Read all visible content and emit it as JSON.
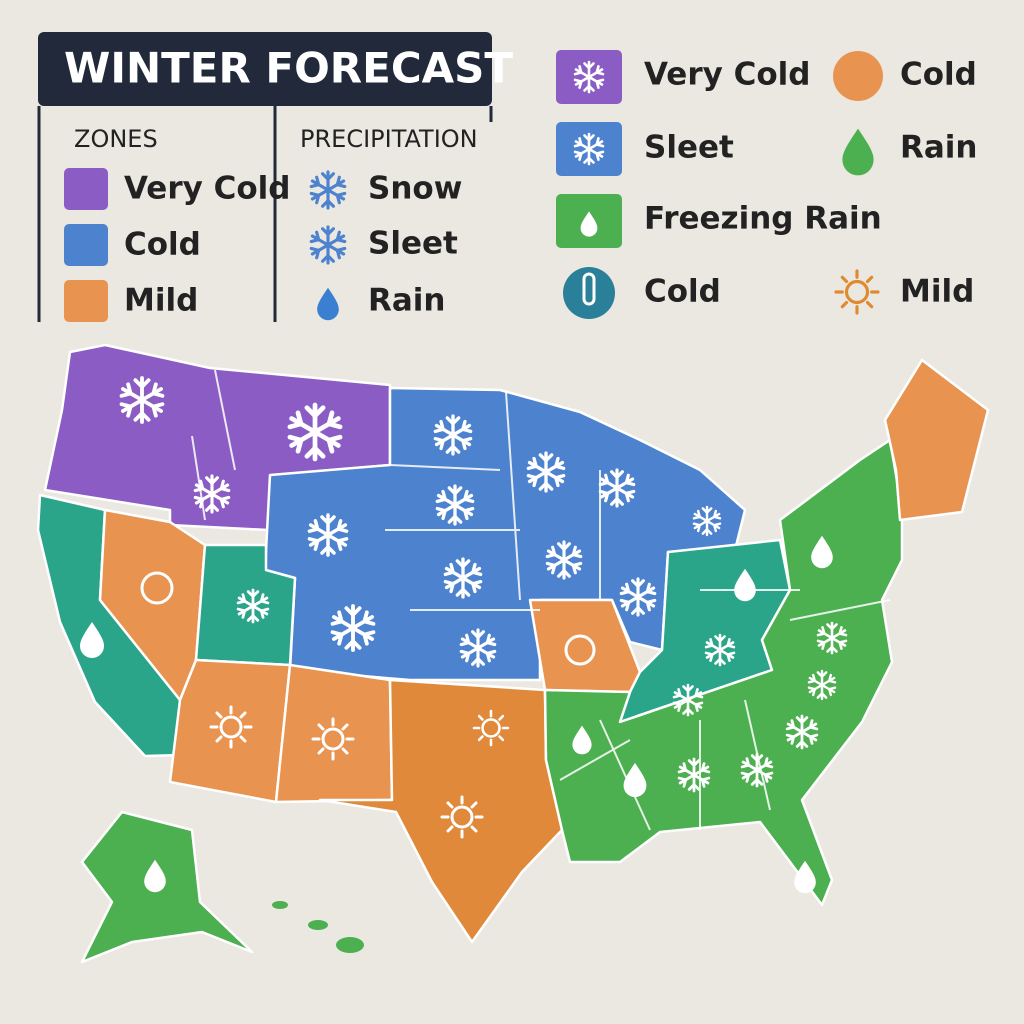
{
  "legend_panel": {
    "title": "WINTER FORECAST",
    "zones": {
      "heading": "ZONES",
      "items": [
        "Very Cold",
        "Cold",
        "Mild"
      ]
    },
    "precipitation": {
      "heading": "PRECIPITATION",
      "items": [
        "Snow",
        "Sleet",
        "Rain"
      ]
    }
  },
  "key": {
    "items": [
      "Very Cold",
      "Cold",
      "Sleet",
      "Rain",
      "Freezing Rain",
      "Cold",
      "Mild"
    ]
  }
}
